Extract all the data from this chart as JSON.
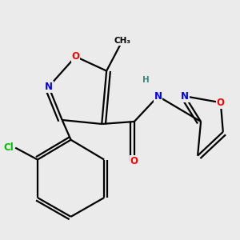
{
  "background_color": "#ebebeb",
  "bond_color": "#000000",
  "atom_colors": {
    "O": "#ff0000",
    "N": "#0000ff",
    "Cl": "#00bb00",
    "C": "#000000",
    "H": "#3a8a7a"
  },
  "figsize": [
    3.0,
    3.0
  ],
  "dpi": 100
}
